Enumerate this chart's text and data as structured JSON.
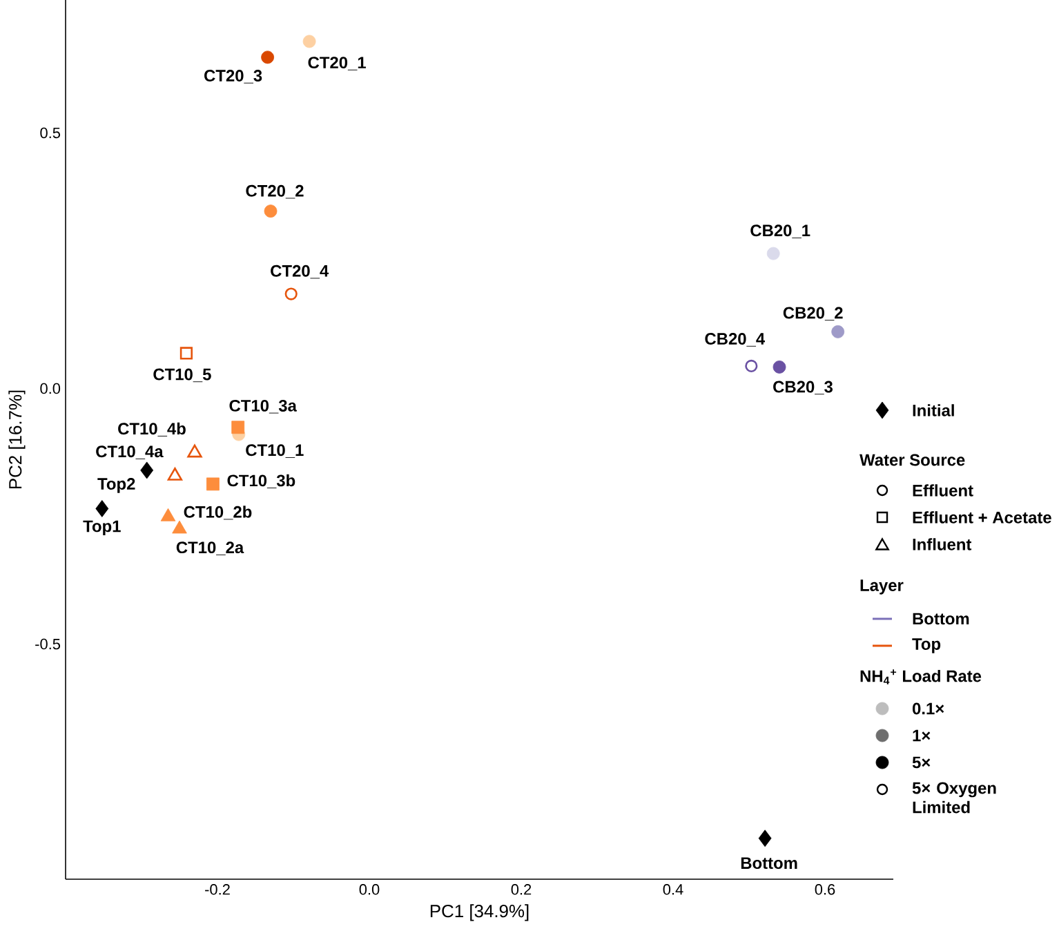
{
  "chart_data": {
    "type": "scatter",
    "xlabel": "PC1 [34.9%]",
    "ylabel": "PC2 [16.7%]",
    "xlim": [
      -0.4,
      0.69
    ],
    "ylim": [
      -0.96,
      0.76
    ],
    "xticks": [
      -0.2,
      {
        "value": 0,
        "label": "0.0"
      },
      0.2,
      0.4,
      0.6
    ],
    "yticks": [
      -0.5,
      {
        "value": 0,
        "label": "0.0"
      },
      0.5
    ],
    "legend": "right",
    "series": [
      {
        "name": "Initial",
        "marker": "diamond",
        "color": "#000000",
        "x": [
          -0.352,
          -0.293,
          0.521
        ],
        "values": [
          -0.235,
          -0.16,
          -0.88
        ],
        "colors": [
          "#000000",
          "#000000",
          "#000000"
        ]
      },
      {
        "marker": "circle",
        "x": [
          -0.079,
          -0.134,
          -0.13,
          -0.172,
          0.532,
          0.617,
          0.54
        ],
        "values": [
          0.679,
          0.648,
          0.347,
          -0.09,
          0.264,
          0.111,
          0.042
        ],
        "colors": [
          "#fdd0a2",
          "#d94801",
          "#fd8d3c",
          "#fdd0a2",
          "#dadaeb",
          "#9e9ac8",
          "#6a51a3"
        ]
      },
      {
        "marker": "square",
        "x": [
          -0.173,
          -0.206
        ],
        "values": [
          -0.076,
          -0.187
        ],
        "colors": [
          "#fd8d3c",
          "#fd8d3c"
        ]
      },
      {
        "marker": "triangle",
        "x": [
          -0.265,
          -0.25
        ],
        "values": [
          -0.251,
          -0.275
        ],
        "colors": [
          "#fd8d3c",
          "#fd8d3c"
        ]
      },
      {
        "marker": "circle",
        "color": "#e6550d",
        "x": [
          -0.103
        ],
        "values": [
          0.185
        ]
      },
      {
        "marker": "circle",
        "color": "#6a51a3",
        "x": [
          0.503
        ],
        "values": [
          0.044
        ]
      },
      {
        "marker": "square",
        "color": "#e6550d",
        "x": [
          -0.241
        ],
        "values": [
          0.069
        ]
      },
      {
        "marker": "triangle",
        "color": "#e6550d",
        "x": [
          -0.23,
          -0.256
        ],
        "values": [
          -0.126,
          -0.171
        ]
      }
    ],
    "annotations": [
      {
        "text": "CT20_1",
        "x": -0.079,
        "y": 0.679
      },
      {
        "text": "CT20_3",
        "x": -0.134,
        "y": 0.648
      },
      {
        "text": "CT20_2",
        "x": -0.13,
        "y": 0.347
      },
      {
        "text": "CT20_4",
        "x": -0.103,
        "y": 0.185
      },
      {
        "text": "CT10_5",
        "x": -0.241,
        "y": 0.069
      },
      {
        "text": "CT10_3a",
        "x": -0.173,
        "y": -0.076
      },
      {
        "text": "CT10_1",
        "x": -0.172,
        "y": -0.09
      },
      {
        "text": "CT10_4b",
        "x": -0.23,
        "y": -0.126
      },
      {
        "text": "CT10_4a",
        "x": -0.256,
        "y": -0.171
      },
      {
        "text": "Top2",
        "x": -0.293,
        "y": -0.16
      },
      {
        "text": "Top1",
        "x": -0.352,
        "y": -0.235
      },
      {
        "text": "CT10_3b",
        "x": -0.206,
        "y": -0.187
      },
      {
        "text": "CT10_2b",
        "x": -0.265,
        "y": -0.251
      },
      {
        "text": "CT10_2a",
        "x": -0.25,
        "y": -0.275
      },
      {
        "text": "CB20_1",
        "x": 0.532,
        "y": 0.264
      },
      {
        "text": "CB20_2",
        "x": 0.617,
        "y": 0.111
      },
      {
        "text": "CB20_4",
        "x": 0.503,
        "y": 0.044
      },
      {
        "text": "CB20_3",
        "x": 0.54,
        "y": 0.042
      },
      {
        "text": "Bottom",
        "x": 0.521,
        "y": -0.88
      },
      "Water Source",
      "Effluent",
      "Effluent + Acetate",
      "Influent",
      "Layer",
      "Bottom",
      "Top",
      "NH$_{4}$$^{+}$ Load Rate",
      "0.1×",
      "1×",
      "5×",
      "5× Oxygen Limited"
    ]
  }
}
